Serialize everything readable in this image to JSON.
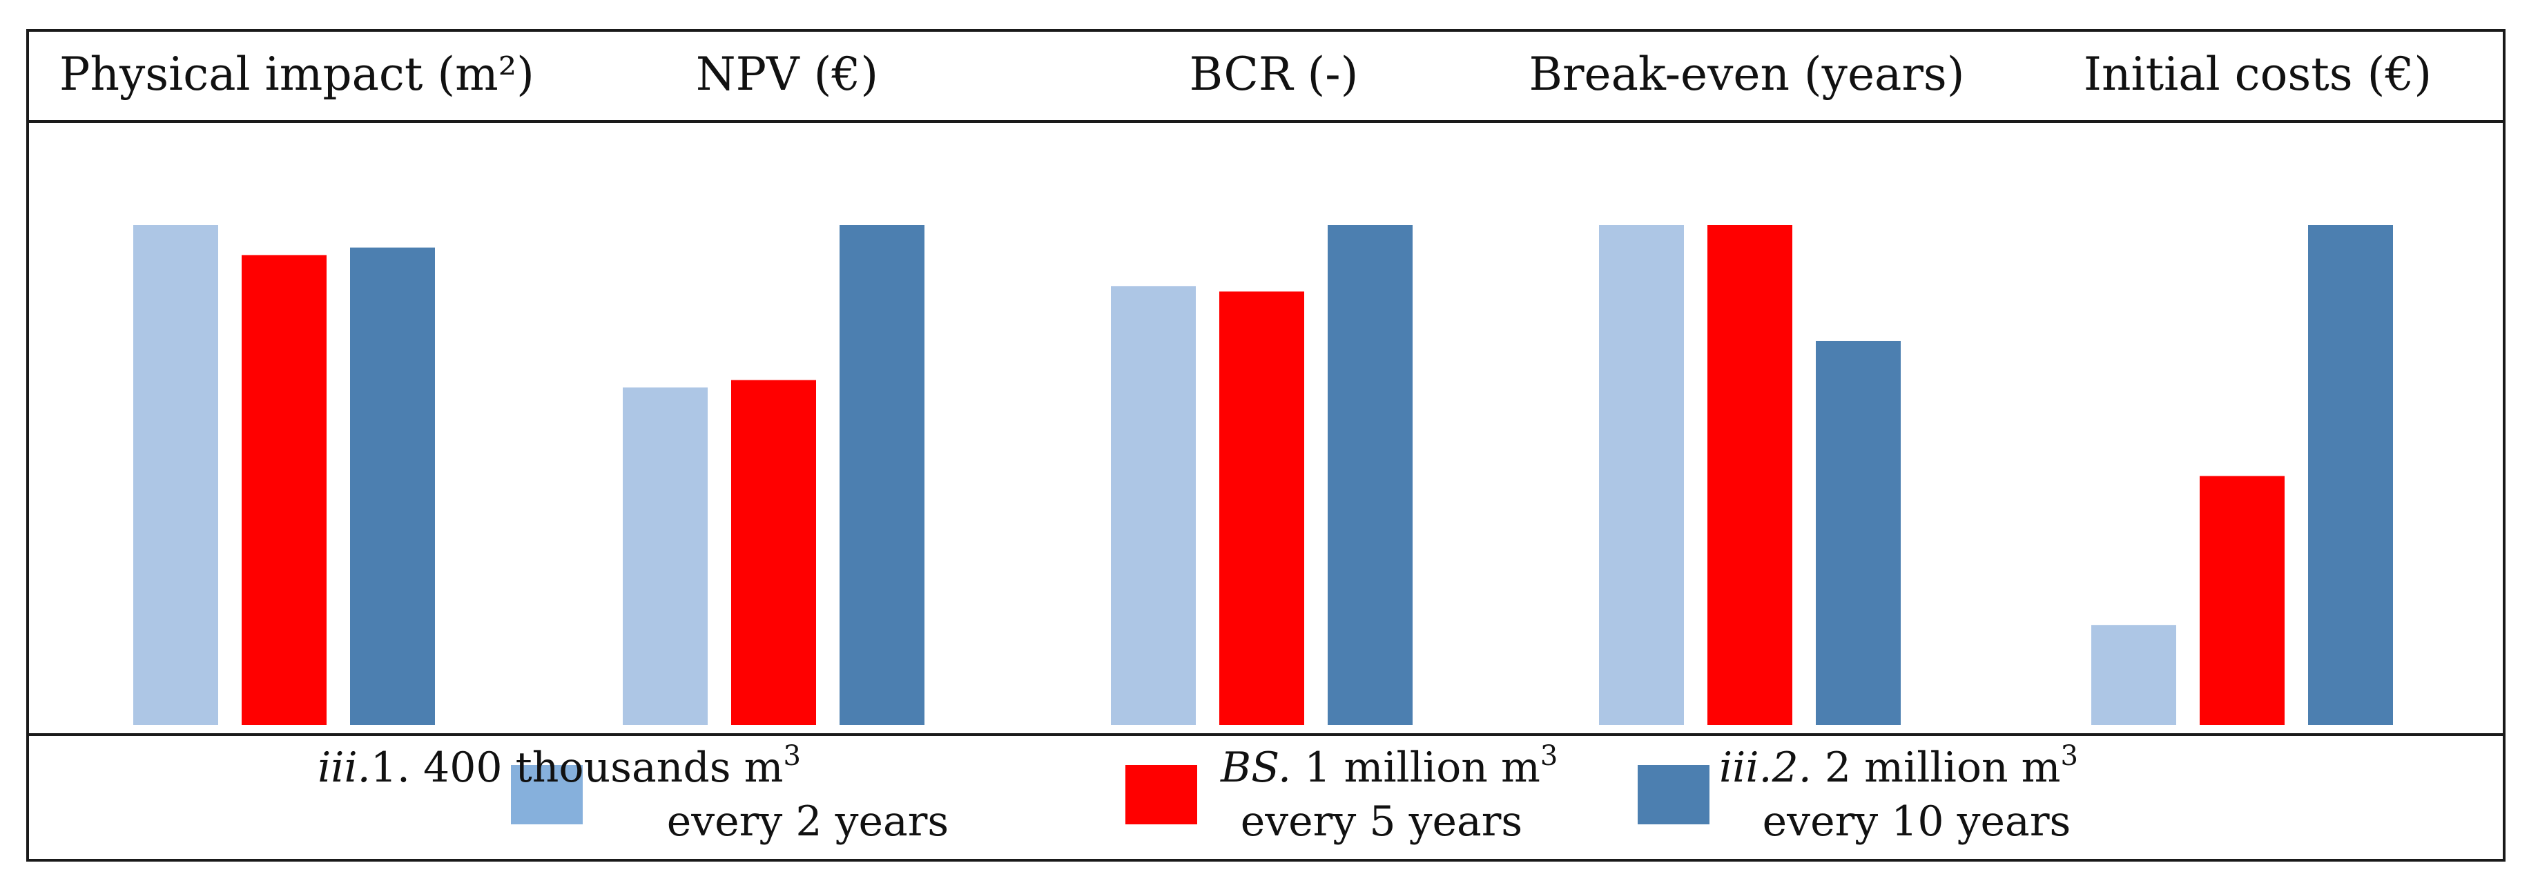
{
  "chart_data": {
    "type": "bar",
    "title": "",
    "xlabel": "",
    "ylabel": "",
    "ylim": [
      0,
      1
    ],
    "grid": false,
    "legend_position": "bottom",
    "categories": [
      "Physical impact (m²)",
      "NPV (€)",
      "BCR (-)",
      "Break-even (years)",
      "Initial costs (€)"
    ],
    "series": [
      {
        "name": "iii.1. 400 thousands m3 every 2 years",
        "color": "#adc6e5",
        "legend_color": "#86b0dc",
        "legend": {
          "italic": "iii.",
          "main": "1. 400 thousands m",
          "sup": "3",
          "line2": "every 2 years"
        },
        "values": [
          1.0,
          0.675,
          0.878,
          1.0,
          0.2
        ]
      },
      {
        "name": "BS. 1 million m3 every 5 years",
        "color": "#ff0000",
        "legend_color": "#ff0000",
        "legend": {
          "italic": "BS.",
          "main": " 1 million m",
          "sup": "3",
          "line2": "every 5 years"
        },
        "values": [
          0.94,
          0.69,
          0.867,
          1.0,
          0.498
        ]
      },
      {
        "name": "iii.2. 2 million m3 every 10 years",
        "color": "#4c7fb0",
        "legend_color": "#4c7fb0",
        "legend": {
          "italic": "iii.2.",
          "main": " 2 million m",
          "sup": "3",
          "line2": "every 10 years"
        },
        "values": [
          0.955,
          1.0,
          1.0,
          0.768,
          1.0
        ]
      }
    ]
  }
}
